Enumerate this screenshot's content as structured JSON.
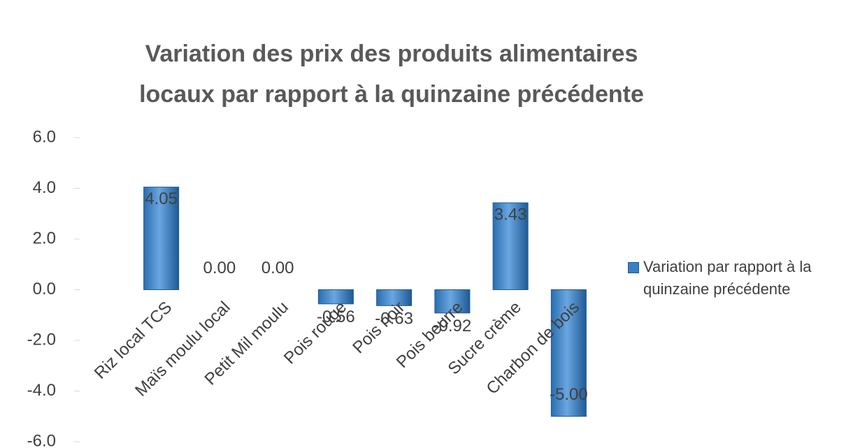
{
  "chart_data": {
    "type": "bar",
    "title": "Variation des prix des produits alimentaires locaux par rapport à la quinzaine précédente",
    "categories": [
      "Riz local TCS",
      "Maïs moulu local",
      "Petit Mil moulu",
      "Pois rouge",
      "Pois noir",
      "Pois beurre",
      "Sucre crème",
      "Charbon de bois"
    ],
    "series": [
      {
        "name": "Variation par rapport à la quinzaine précédente",
        "color": "#3a7fc4",
        "values": [
          4.05,
          0,
          0,
          -0.56,
          -0.63,
          -0.92,
          3.43,
          -5.0
        ],
        "value_labels": [
          "4.05",
          "0.00",
          "0.00",
          "-0.56",
          "-0.63",
          "-0.92",
          "3.43",
          "-5.00"
        ]
      }
    ],
    "ylim": [
      -6,
      6
    ],
    "yticks": [
      {
        "value": -6,
        "label": "-6.0"
      },
      {
        "value": -4,
        "label": "-4.0"
      },
      {
        "value": -2,
        "label": "-2.0"
      },
      {
        "value": 0,
        "label": "0.0"
      },
      {
        "value": 2,
        "label": "2.0"
      },
      {
        "value": 4,
        "label": "4.0"
      },
      {
        "value": 6,
        "label": "6.0"
      }
    ],
    "legend": "right"
  }
}
